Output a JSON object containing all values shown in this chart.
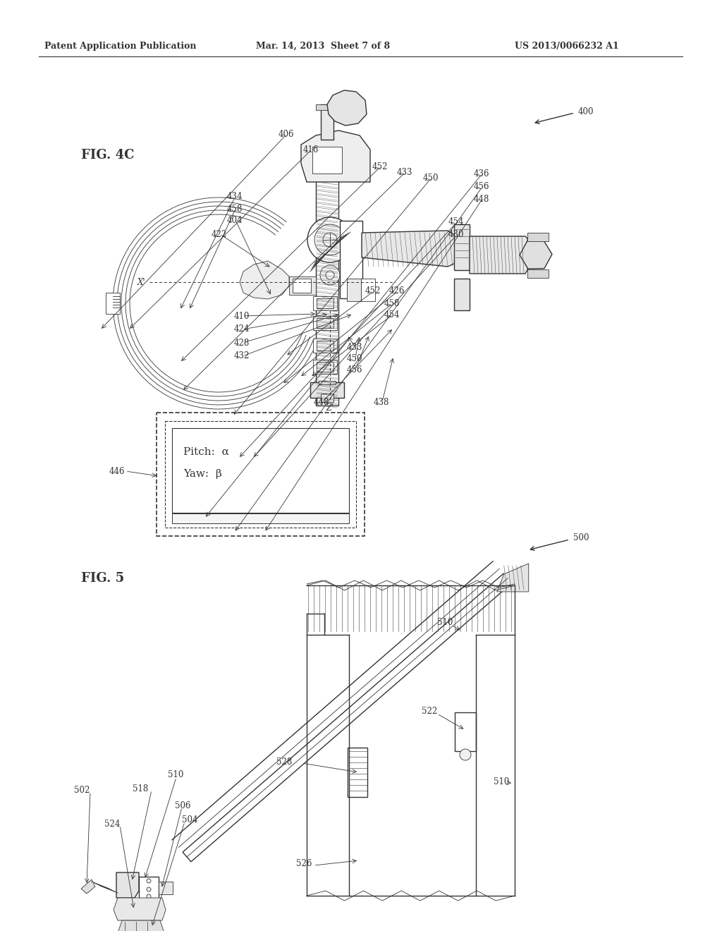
{
  "bg_color": "#ffffff",
  "header_left": "Patent Application Publication",
  "header_center": "Mar. 14, 2013  Sheet 7 of 8",
  "header_right": "US 2013/0066232 A1",
  "fig4c_label": "FIG. 4C",
  "fig5_label": "FIG. 5",
  "ref_400": "400",
  "ref_500": "500",
  "display_line1": "Pitch:  α",
  "display_line2": "Yaw:  β",
  "display_label": "446",
  "line_color": "#333333",
  "hatch_color": "#555555"
}
